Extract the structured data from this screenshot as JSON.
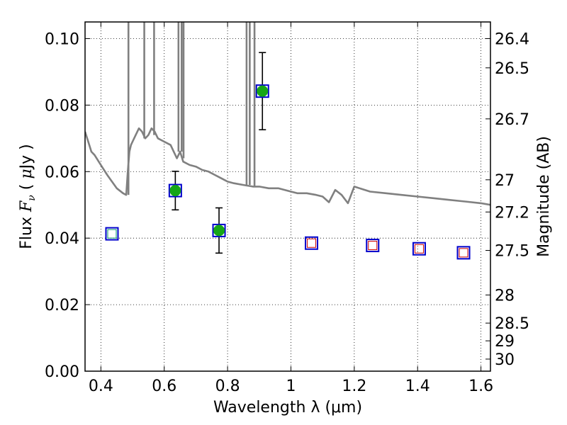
{
  "chart_data": {
    "type": "scatter",
    "xlabel": "Wavelength  λ (μm)",
    "ylabel": "Flux  F_ν  ( μJy )",
    "y2label": "Magnitude (AB)",
    "xlim": [
      0.35,
      1.63
    ],
    "ylim": [
      0.0,
      0.105
    ],
    "grid": true,
    "x_ticks": [
      {
        "value": 0.4,
        "label": "0.4"
      },
      {
        "value": 0.6,
        "label": "0.6"
      },
      {
        "value": 0.8,
        "label": "0.8"
      },
      {
        "value": 1.0,
        "label": "1"
      },
      {
        "value": 1.2,
        "label": "1.2"
      },
      {
        "value": 1.4,
        "label": "1.4"
      },
      {
        "value": 1.6,
        "label": "1.6"
      }
    ],
    "y_ticks": [
      {
        "value": 0.0,
        "label": "0.00"
      },
      {
        "value": 0.02,
        "label": "0.02"
      },
      {
        "value": 0.04,
        "label": "0.04"
      },
      {
        "value": 0.06,
        "label": "0.06"
      },
      {
        "value": 0.08,
        "label": "0.08"
      },
      {
        "value": 0.1,
        "label": "0.10"
      }
    ],
    "y2_ticks": [
      {
        "mag": 26.4,
        "label": "26.4"
      },
      {
        "mag": 26.5,
        "label": "26.5"
      },
      {
        "mag": 26.7,
        "label": "26.7"
      },
      {
        "mag": 27,
        "label": "27"
      },
      {
        "mag": 27.2,
        "label": "27.2"
      },
      {
        "mag": 27.5,
        "label": "27.5"
      },
      {
        "mag": 28,
        "label": "28"
      },
      {
        "mag": 28.5,
        "label": "28.5"
      },
      {
        "mag": 29,
        "label": "29"
      },
      {
        "mag": 30,
        "label": "30"
      }
    ],
    "sed_model": {
      "color": "#808080",
      "x": [
        0.35,
        0.36,
        0.37,
        0.38,
        0.4,
        0.42,
        0.45,
        0.47,
        0.48,
        0.485,
        0.49,
        0.495,
        0.5,
        0.51,
        0.52,
        0.53,
        0.54,
        0.55,
        0.56,
        0.57,
        0.58,
        0.6,
        0.62,
        0.63,
        0.64,
        0.65,
        0.66,
        0.68,
        0.7,
        0.72,
        0.74,
        0.76,
        0.78,
        0.8,
        0.82,
        0.85,
        0.88,
        0.9,
        0.93,
        0.96,
        1.0,
        1.02,
        1.05,
        1.08,
        1.1,
        1.12,
        1.14,
        1.16,
        1.18,
        1.2,
        1.25,
        1.3,
        1.35,
        1.4,
        1.45,
        1.5,
        1.55,
        1.6,
        1.63
      ],
      "y": [
        0.072,
        0.069,
        0.066,
        0.065,
        0.062,
        0.059,
        0.055,
        0.0535,
        0.053,
        0.06,
        0.066,
        0.068,
        0.069,
        0.071,
        0.073,
        0.072,
        0.07,
        0.071,
        0.073,
        0.072,
        0.07,
        0.069,
        0.068,
        0.066,
        0.064,
        0.066,
        0.063,
        0.062,
        0.0615,
        0.0605,
        0.06,
        0.059,
        0.058,
        0.057,
        0.0565,
        0.056,
        0.0555,
        0.0555,
        0.055,
        0.055,
        0.054,
        0.0535,
        0.0535,
        0.053,
        0.0525,
        0.0508,
        0.0545,
        0.053,
        0.0505,
        0.0555,
        0.054,
        0.0535,
        0.053,
        0.0525,
        0.052,
        0.0515,
        0.051,
        0.0505,
        0.05
      ]
    },
    "emission_spikes": {
      "color": "#808080",
      "lines": [
        {
          "x": 0.487,
          "y_from": 0.053,
          "y_to": 0.105
        },
        {
          "x": 0.537,
          "y_from": 0.07,
          "y_to": 0.105
        },
        {
          "x": 0.568,
          "y_from": 0.071,
          "y_to": 0.105
        },
        {
          "x": 0.645,
          "y_from": 0.066,
          "y_to": 0.105
        },
        {
          "x": 0.655,
          "y_from": 0.066,
          "y_to": 0.105
        },
        {
          "x": 0.661,
          "y_from": 0.064,
          "y_to": 0.105
        },
        {
          "x": 0.86,
          "y_from": 0.056,
          "y_to": 0.105
        },
        {
          "x": 0.87,
          "y_from": 0.056,
          "y_to": 0.105
        },
        {
          "x": 0.885,
          "y_from": 0.0555,
          "y_to": 0.105
        }
      ]
    },
    "observed": {
      "color": "#16a616",
      "points": [
        {
          "x": 0.635,
          "y": 0.0543,
          "err": 0.0058
        },
        {
          "x": 0.773,
          "y": 0.0423,
          "err": 0.0068
        },
        {
          "x": 0.91,
          "y": 0.0842,
          "err": 0.0116
        }
      ]
    },
    "model_fluxes": {
      "edge_color": "#0000cc",
      "points": [
        {
          "x": 0.435,
          "y": 0.0413,
          "inner": "#009966"
        },
        {
          "x": 0.635,
          "y": 0.0543,
          "inner": null
        },
        {
          "x": 0.773,
          "y": 0.0423,
          "inner": null
        },
        {
          "x": 0.91,
          "y": 0.0842,
          "inner": null
        },
        {
          "x": 1.065,
          "y": 0.0385,
          "inner": "#cc0000"
        },
        {
          "x": 1.258,
          "y": 0.0378,
          "inner": "#cc0000"
        },
        {
          "x": 1.405,
          "y": 0.0368,
          "inner": "#cc0000"
        },
        {
          "x": 1.545,
          "y": 0.0356,
          "inner": "#cc0000"
        }
      ]
    }
  }
}
